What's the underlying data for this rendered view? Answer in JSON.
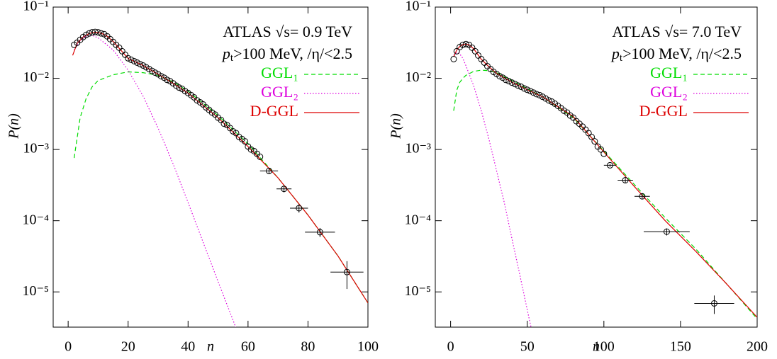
{
  "chart_data": [
    {
      "type": "line",
      "log_y": true,
      "legend": "upper right",
      "x_label": "n",
      "y_label": "P(n)",
      "xlim": [
        -5,
        100
      ],
      "xticks": [
        0,
        20,
        40,
        60,
        80,
        100
      ],
      "ylim": [
        3.2e-06,
        0.1
      ],
      "yticks": [
        {
          "value": 0.1,
          "label": "10⁻¹"
        },
        {
          "value": 0.01,
          "label": "10⁻²"
        },
        {
          "value": 0.001,
          "label": "10⁻³"
        },
        {
          "value": 0.0001,
          "label": "10⁻⁴"
        },
        {
          "value": 1e-05,
          "label": "10⁻⁵"
        }
      ],
      "annotations": [
        [
          {
            "text": "ATLAS √s= 0.9 TeV"
          }
        ],
        [
          {
            "text": "p"
          },
          {
            "text": "t",
            "sub": true
          },
          {
            "text": ">100 MeV, /η/<2.5"
          }
        ]
      ],
      "data_points": {
        "color": "#000000",
        "x": [
          2,
          3,
          4,
          5,
          6,
          7,
          8,
          9,
          10,
          11,
          12,
          13,
          14,
          15,
          16,
          17,
          18,
          19,
          20,
          21,
          22,
          23,
          24,
          25,
          26,
          27,
          28,
          29,
          30,
          31,
          32,
          33,
          34,
          35,
          36,
          37,
          38,
          39,
          40,
          41,
          42,
          43,
          44,
          45,
          46,
          47,
          48,
          49,
          50,
          51,
          52,
          53,
          54,
          55,
          56,
          57,
          58,
          59,
          60,
          61,
          62,
          63,
          64
        ],
        "values": [
          0.0295,
          0.0316,
          0.0347,
          0.038,
          0.0407,
          0.0427,
          0.0442,
          0.0447,
          0.0442,
          0.0427,
          0.0417,
          0.0389,
          0.0355,
          0.0324,
          0.0295,
          0.0269,
          0.024,
          0.0214,
          0.0191,
          0.0182,
          0.0174,
          0.0166,
          0.0158,
          0.0151,
          0.0143,
          0.0135,
          0.0127,
          0.012,
          0.0114,
          0.0107,
          0.0102,
          0.0095,
          0.0091,
          0.0085,
          0.0079,
          0.0074,
          0.0071,
          0.0066,
          0.0062,
          0.0058,
          0.0054,
          0.0049,
          0.0046,
          0.0043,
          0.0039,
          0.0036,
          0.0033,
          0.0031,
          0.0028,
          0.0026,
          0.0023,
          0.0022,
          0.002,
          0.0018,
          0.0017,
          0.0015,
          0.0014,
          0.0013,
          0.0011,
          0.001,
          0.00095,
          0.00087,
          0.00079
        ]
      },
      "binned_points": {
        "color": "#000000",
        "x": [
          67,
          72,
          77,
          84,
          93
        ],
        "values": [
          0.0005,
          0.00028,
          0.00015,
          6.9e-05,
          1.9e-05
        ],
        "xerr": [
          3,
          2.5,
          3,
          5,
          5.5
        ],
        "yerr": [
          5e-05,
          3e-05,
          2e-05,
          1e-05,
          8e-06
        ]
      },
      "series": [
        {
          "name": "GGL₁",
          "color": "#00dd00",
          "style": "dashed",
          "x": [
            2,
            4,
            6,
            8,
            10,
            15,
            20,
            25,
            30,
            35,
            40,
            50,
            60,
            70,
            80,
            90,
            100
          ],
          "values": [
            0.00076,
            0.0028,
            0.0052,
            0.0076,
            0.0093,
            0.0112,
            0.0123,
            0.012,
            0.011,
            0.0089,
            0.0066,
            0.003,
            0.0012,
            0.0004,
            0.00012,
            3.2e-05,
            7e-06
          ]
        },
        {
          "name": "GGL₂",
          "color": "#dd00dd",
          "style": "dotted",
          "x": [
            2,
            4,
            6,
            8,
            10,
            15,
            20,
            25,
            30,
            35,
            40,
            45,
            50,
            55,
            57
          ],
          "values": [
            0.025,
            0.034,
            0.039,
            0.04,
            0.037,
            0.025,
            0.013,
            0.0056,
            0.002,
            0.00063,
            0.00018,
            5e-05,
            1.4e-05,
            4e-06,
            2.4e-06
          ]
        },
        {
          "name": "D-GGL",
          "color": "#dd0000",
          "style": "solid",
          "x": [
            1.5,
            3,
            5,
            7,
            9,
            11,
            13,
            15,
            20,
            25,
            30,
            35,
            40,
            50,
            60,
            70,
            80,
            90,
            100
          ],
          "values": [
            0.021,
            0.031,
            0.038,
            0.0425,
            0.0445,
            0.043,
            0.039,
            0.033,
            0.019,
            0.0151,
            0.0114,
            0.0085,
            0.0062,
            0.0028,
            0.0011,
            0.0004,
            0.00012,
            3.2e-05,
            7e-06
          ]
        }
      ]
    },
    {
      "type": "line",
      "log_y": true,
      "legend": "upper right",
      "x_label": "n",
      "y_label": "P(n)",
      "xlim": [
        -10,
        200
      ],
      "xticks": [
        0,
        50,
        100,
        150,
        200
      ],
      "ylim": [
        3.2e-06,
        0.1
      ],
      "yticks": [
        {
          "value": 0.1,
          "label": "10⁻¹"
        },
        {
          "value": 0.01,
          "label": "10⁻²"
        },
        {
          "value": 0.001,
          "label": "10⁻³"
        },
        {
          "value": 0.0001,
          "label": "10⁻⁴"
        },
        {
          "value": 1e-05,
          "label": "10⁻⁵"
        }
      ],
      "annotations": [
        [
          {
            "text": "ATLAS √s= 7.0 TeV"
          }
        ],
        [
          {
            "text": "p"
          },
          {
            "text": "t",
            "sub": true
          },
          {
            "text": ">100 MeV, /η/<2.5"
          }
        ]
      ],
      "data_points": {
        "color": "#000000",
        "x": [
          2,
          4,
          6,
          8,
          10,
          12,
          14,
          16,
          18,
          20,
          22,
          24,
          26,
          28,
          30,
          32,
          34,
          36,
          38,
          40,
          42,
          44,
          46,
          48,
          50,
          52,
          54,
          56,
          58,
          60,
          62,
          64,
          66,
          68,
          70,
          72,
          74,
          76,
          78,
          80,
          82,
          84,
          86,
          88,
          90,
          92,
          94,
          96,
          98,
          100
        ],
        "values": [
          0.0186,
          0.024,
          0.0275,
          0.0295,
          0.0302,
          0.0295,
          0.0269,
          0.024,
          0.0209,
          0.0186,
          0.0166,
          0.0148,
          0.0135,
          0.0123,
          0.0115,
          0.0107,
          0.0102,
          0.0095,
          0.0091,
          0.0087,
          0.0083,
          0.0079,
          0.0076,
          0.0072,
          0.0069,
          0.0066,
          0.0063,
          0.006,
          0.0058,
          0.0055,
          0.0052,
          0.0049,
          0.0047,
          0.0044,
          0.0041,
          0.0038,
          0.0035,
          0.0033,
          0.003,
          0.0028,
          0.0025,
          0.0023,
          0.0021,
          0.0019,
          0.0017,
          0.0015,
          0.0013,
          0.0011,
          0.001,
          0.00087
        ]
      },
      "binned_points": {
        "color": "#000000",
        "x": [
          104,
          114,
          125,
          141,
          172
        ],
        "values": [
          0.0006,
          0.00037,
          0.00022,
          7e-05,
          6.9e-06
        ],
        "xerr": [
          4,
          5,
          5,
          15,
          13
        ],
        "yerr": [
          3e-05,
          3e-05,
          2e-05,
          8e-06,
          2e-06
        ]
      },
      "series": [
        {
          "name": "GGL₁",
          "color": "#00dd00",
          "style": "dashed",
          "x": [
            2,
            4,
            6,
            8,
            10,
            15,
            20,
            25,
            30,
            40,
            60,
            80,
            100,
            120,
            140,
            160,
            180,
            200
          ],
          "values": [
            0.0035,
            0.0068,
            0.0088,
            0.01,
            0.011,
            0.0125,
            0.013,
            0.0128,
            0.012,
            0.0093,
            0.0055,
            0.0028,
            0.00095,
            0.00032,
            0.00011,
            4e-05,
            1.3e-05,
            4.2e-06
          ]
        },
        {
          "name": "GGL₂",
          "color": "#dd00dd",
          "style": "dotted",
          "x": [
            2,
            4,
            6,
            8,
            10,
            15,
            20,
            25,
            30,
            35,
            40,
            45,
            50,
            55
          ],
          "values": [
            0.021,
            0.023,
            0.022,
            0.019,
            0.015,
            0.0079,
            0.0035,
            0.0014,
            0.0005,
            0.00018,
            5.6e-05,
            1.8e-05,
            5.6e-06,
            1.8e-06
          ]
        },
        {
          "name": "D-GGL",
          "color": "#dd0000",
          "style": "solid",
          "x": [
            2,
            4,
            6,
            8,
            10,
            12,
            15,
            20,
            25,
            30,
            40,
            50,
            60,
            80,
            100,
            120,
            140,
            160,
            180,
            200
          ],
          "values": [
            0.02,
            0.025,
            0.028,
            0.0298,
            0.0302,
            0.0295,
            0.026,
            0.0185,
            0.0145,
            0.0117,
            0.0088,
            0.0069,
            0.0055,
            0.0029,
            0.00092,
            0.0003,
            0.0001,
            3.7e-05,
            1.3e-05,
            4.4e-06
          ]
        }
      ]
    }
  ]
}
